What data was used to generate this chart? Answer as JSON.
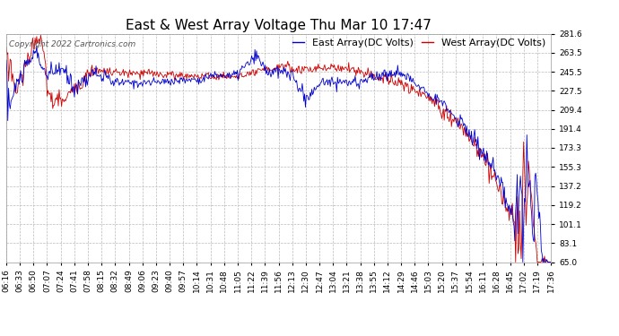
{
  "title": "East & West Array Voltage Thu Mar 10 17:47",
  "copyright": "Copyright 2022 Cartronics.com",
  "legend_east": "East Array(DC Volts)",
  "legend_west": "West Array(DC Volts)",
  "east_color": "#0000cc",
  "west_color": "#cc0000",
  "background_color": "#ffffff",
  "grid_color": "#bbbbbb",
  "ylim": [
    65.0,
    281.6
  ],
  "yticks": [
    65.0,
    83.1,
    101.1,
    119.2,
    137.2,
    155.3,
    173.3,
    191.4,
    209.4,
    227.5,
    245.5,
    263.5,
    281.6
  ],
  "xtick_labels": [
    "06:16",
    "06:33",
    "06:50",
    "07:07",
    "07:24",
    "07:41",
    "07:58",
    "08:15",
    "08:32",
    "08:49",
    "09:06",
    "09:23",
    "09:40",
    "09:57",
    "10:14",
    "10:31",
    "10:48",
    "11:05",
    "11:22",
    "11:39",
    "11:56",
    "12:13",
    "12:30",
    "12:47",
    "13:04",
    "13:21",
    "13:38",
    "13:55",
    "14:12",
    "14:29",
    "14:46",
    "15:03",
    "15:20",
    "15:37",
    "15:54",
    "16:11",
    "16:28",
    "16:45",
    "17:02",
    "17:19",
    "17:36"
  ],
  "title_fontsize": 11,
  "legend_fontsize": 8,
  "tick_fontsize": 6.5,
  "copyright_fontsize": 6.5
}
